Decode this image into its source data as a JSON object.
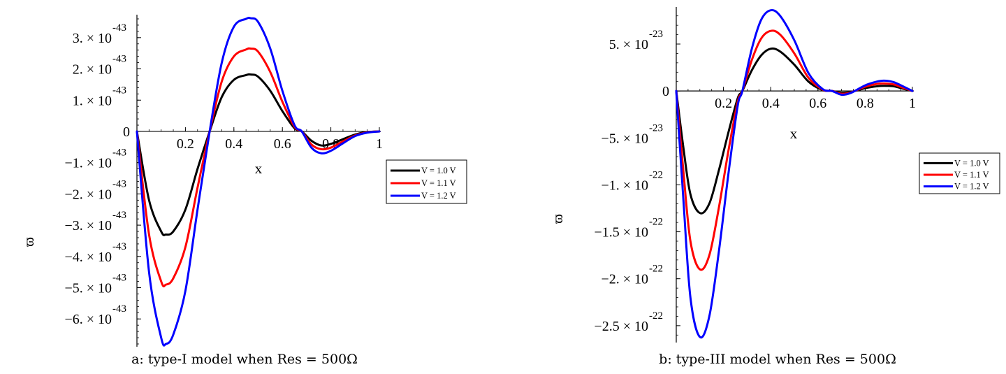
{
  "chart_data": [
    {
      "type": "line",
      "caption": "a: type-I model when Res = 500Ω",
      "xlabel": "x",
      "ylabel": "ϖ",
      "xlim": [
        0,
        1
      ],
      "ylim": [
        -6.8e-43,
        3.6e-43
      ],
      "x_ticks": [
        {
          "v": 0.2,
          "label": "0.2"
        },
        {
          "v": 0.4,
          "label": "0.4"
        },
        {
          "v": 0.6,
          "label": "0.6"
        },
        {
          "v": 0.8,
          "label": "0.8"
        },
        {
          "v": 1.0,
          "label": "1"
        }
      ],
      "y_ticks": [
        {
          "v": 3e-43,
          "mant": "3. × 10",
          "exp": "-43"
        },
        {
          "v": 2e-43,
          "mant": "2. × 10",
          "exp": "-43"
        },
        {
          "v": 1e-43,
          "mant": "1. × 10",
          "exp": "-43"
        },
        {
          "v": 0,
          "mant": "0",
          "exp": ""
        },
        {
          "v": -1e-43,
          "mant": "−1. × 10",
          "exp": "-43"
        },
        {
          "v": -2e-43,
          "mant": "−2. × 10",
          "exp": "-43"
        },
        {
          "v": -3e-43,
          "mant": "−3. × 10",
          "exp": "-43"
        },
        {
          "v": -4e-43,
          "mant": "−4. × 10",
          "exp": "-43"
        },
        {
          "v": -5e-43,
          "mant": "−5. × 10",
          "exp": "-43"
        },
        {
          "v": -6e-43,
          "mant": "−6. × 10",
          "exp": "-43"
        }
      ],
      "series": [
        {
          "name": "V = 1.0 V",
          "color": "#000000",
          "x": [
            0,
            0.05,
            0.1,
            0.12,
            0.15,
            0.2,
            0.25,
            0.3,
            0.35,
            0.4,
            0.45,
            0.47,
            0.5,
            0.55,
            0.6,
            0.65,
            0.68,
            0.72,
            0.76,
            0.8,
            0.85,
            0.9,
            0.95,
            1.0
          ],
          "y": [
            0,
            -2.2e-43,
            -3.2e-43,
            -3.3e-43,
            -3.2e-43,
            -2.5e-43,
            -1.2e-43,
            0,
            1.1e-43,
            1.65e-43,
            1.8e-43,
            1.82e-43,
            1.75e-43,
            1.3e-43,
            6.5e-44,
            1e-44,
            0,
            -3e-44,
            -4.5e-44,
            -4e-44,
            -2.5e-44,
            -1e-44,
            -2e-45,
            0
          ]
        },
        {
          "name": "V = 1.1 V",
          "color": "#ff0000",
          "x": [
            0,
            0.05,
            0.1,
            0.12,
            0.15,
            0.2,
            0.25,
            0.3,
            0.35,
            0.4,
            0.45,
            0.47,
            0.5,
            0.55,
            0.6,
            0.65,
            0.68,
            0.72,
            0.76,
            0.8,
            0.85,
            0.9,
            0.95,
            1.0
          ],
          "y": [
            0,
            -3.3e-43,
            -4.8e-43,
            -4.9e-43,
            -4.7e-43,
            -3.7e-43,
            -1.8e-43,
            0,
            1.6e-43,
            2.4e-43,
            2.62e-43,
            2.65e-43,
            2.55e-43,
            1.9e-43,
            9.5e-44,
            1.5e-44,
            0,
            -4.2e-44,
            -5.7e-44,
            -5.2e-44,
            -3.2e-44,
            -1.3e-44,
            -3e-45,
            0
          ]
        },
        {
          "name": "V = 1.2 V",
          "color": "#0000ff",
          "x": [
            0,
            0.05,
            0.1,
            0.12,
            0.15,
            0.2,
            0.25,
            0.3,
            0.35,
            0.4,
            0.45,
            0.47,
            0.5,
            0.55,
            0.6,
            0.65,
            0.68,
            0.72,
            0.76,
            0.8,
            0.85,
            0.9,
            0.95,
            1.0
          ],
          "y": [
            0,
            -4.5e-43,
            -6.6e-43,
            -6.8e-43,
            -6.5e-43,
            -5.1e-43,
            -2.5e-43,
            0,
            2.2e-43,
            3.35e-43,
            3.6e-43,
            3.62e-43,
            3.5e-43,
            2.65e-43,
            1.3e-43,
            2e-44,
            0,
            -5.2e-44,
            -7e-44,
            -6.2e-44,
            -3.8e-44,
            -1.5e-44,
            -4e-45,
            0
          ]
        }
      ],
      "legend": "right"
    },
    {
      "type": "line",
      "caption": "b: type-III model when Res = 500Ω",
      "xlabel": "x",
      "ylabel": "ϖ",
      "xlim": [
        0,
        1
      ],
      "ylim": [
        -2.65e-22,
        8.5e-23
      ],
      "x_ticks": [
        {
          "v": 0.2,
          "label": "0.2"
        },
        {
          "v": 0.4,
          "label": "0.4"
        },
        {
          "v": 0.6,
          "label": "0.6"
        },
        {
          "v": 0.8,
          "label": "0.8"
        },
        {
          "v": 1.0,
          "label": "1"
        }
      ],
      "y_ticks": [
        {
          "v": 5e-23,
          "mant": "5. × 10",
          "exp": "-23"
        },
        {
          "v": 0,
          "mant": "0",
          "exp": ""
        },
        {
          "v": -5e-23,
          "mant": "−5. × 10",
          "exp": "-23"
        },
        {
          "v": -1e-22,
          "mant": "−1. × 10",
          "exp": "-22"
        },
        {
          "v": -1.5e-22,
          "mant": "−1.5 × 10",
          "exp": "-22"
        },
        {
          "v": -2e-22,
          "mant": "−2. × 10",
          "exp": "-22"
        },
        {
          "v": -2.5e-22,
          "mant": "−2.5 × 10",
          "exp": "-22"
        }
      ],
      "series": [
        {
          "name": "V = 1.0 V",
          "color": "#000000",
          "x": [
            0,
            0.03,
            0.06,
            0.1,
            0.14,
            0.18,
            0.22,
            0.26,
            0.28,
            0.32,
            0.36,
            0.4,
            0.44,
            0.5,
            0.56,
            0.62,
            0.66,
            0.7,
            0.74,
            0.8,
            0.85,
            0.88,
            0.92,
            0.96,
            1.0
          ],
          "y": [
            0,
            -6e-23,
            -1.1e-22,
            -1.3e-22,
            -1.2e-22,
            -8.5e-23,
            -4.5e-23,
            -8e-24,
            0,
            2.2e-23,
            3.8e-23,
            4.5e-23,
            4.2e-23,
            2.8e-23,
            1e-23,
            1e-24,
            0,
            -2e-24,
            -1e-24,
            3e-24,
            5e-24,
            5.5e-24,
            5e-24,
            2.5e-24,
            0
          ]
        },
        {
          "name": "V = 1.1 V",
          "color": "#ff0000",
          "x": [
            0,
            0.03,
            0.06,
            0.1,
            0.14,
            0.18,
            0.22,
            0.26,
            0.28,
            0.32,
            0.36,
            0.4,
            0.44,
            0.5,
            0.56,
            0.62,
            0.66,
            0.7,
            0.74,
            0.8,
            0.85,
            0.88,
            0.92,
            0.96,
            1.0
          ],
          "y": [
            0,
            -8.5e-23,
            -1.6e-22,
            -1.9e-22,
            -1.75e-22,
            -1.25e-22,
            -6.5e-23,
            -1.2e-23,
            0,
            3.3e-23,
            5.6e-23,
            6.4e-23,
            6e-23,
            4e-23,
            1.4e-23,
            1.5e-24,
            0,
            -3e-24,
            -1.5e-24,
            4.5e-24,
            7.5e-24,
            8e-24,
            7e-24,
            3.5e-24,
            0
          ]
        },
        {
          "name": "V = 1.2 V",
          "color": "#0000ff",
          "x": [
            0,
            0.03,
            0.06,
            0.1,
            0.14,
            0.18,
            0.22,
            0.26,
            0.28,
            0.32,
            0.36,
            0.4,
            0.44,
            0.5,
            0.56,
            0.62,
            0.66,
            0.7,
            0.74,
            0.8,
            0.85,
            0.88,
            0.92,
            0.96,
            1.0
          ],
          "y": [
            0,
            -1.15e-22,
            -2.2e-22,
            -2.62e-22,
            -2.4e-22,
            -1.72e-22,
            -9e-23,
            -1.6e-23,
            0,
            4.5e-23,
            7.6e-23,
            8.6e-23,
            8e-23,
            5.4e-23,
            1.9e-23,
            2e-24,
            0,
            -4e-24,
            -2e-24,
            6e-24,
            1e-23,
            1.1e-23,
            9.5e-24,
            5e-24,
            0
          ]
        }
      ],
      "legend": "right"
    }
  ]
}
